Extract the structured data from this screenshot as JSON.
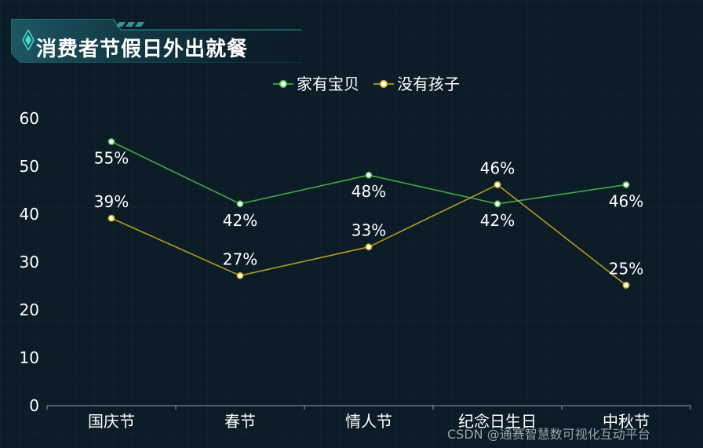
{
  "title": "消费者节假日外出就餐",
  "watermark": "CSDN @通赛智慧数可视化互动平台",
  "colors": {
    "background": "#0b1c26",
    "series_1": "#4fbf4f",
    "series_2": "#d4b21c",
    "axis_text": "#ffffff"
  },
  "chart_data": {
    "type": "line",
    "categories": [
      "国庆节",
      "春节",
      "情人节",
      "纪念日生日",
      "中秋节"
    ],
    "series": [
      {
        "name": "家有宝贝",
        "values": [
          55,
          42,
          48,
          42,
          46
        ],
        "labels": [
          "55%",
          "42%",
          "48%",
          "42%",
          "46%"
        ],
        "color": "#4fbf4f"
      },
      {
        "name": "没有孩子",
        "values": [
          39,
          27,
          33,
          46,
          25
        ],
        "labels": [
          "39%",
          "27%",
          "33%",
          "46%",
          "25%"
        ],
        "color": "#d4b21c"
      }
    ],
    "y_ticks": [
      0,
      10,
      20,
      30,
      40,
      50,
      60
    ],
    "ylim": [
      0,
      60
    ],
    "legend": "top-center",
    "grid": false
  }
}
